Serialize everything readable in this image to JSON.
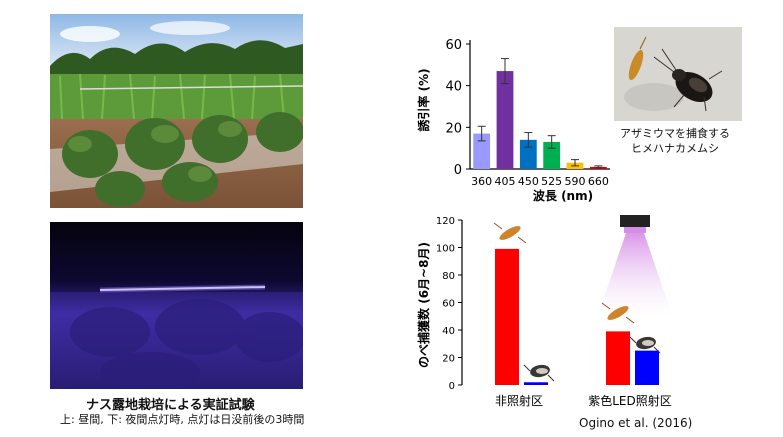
{
  "photos": {
    "day": {
      "label": ""
    },
    "night": {
      "label": ""
    },
    "insect": {
      "caption_line1": "アザミウマを捕食する",
      "caption_line2": "ヒメハナカメムシ"
    }
  },
  "captions": {
    "title": "ナス露地栽培による実証試験",
    "subtitle": "上: 昼間, 下: 夜間点灯時, 点灯は日没前後の3時間"
  },
  "citation": "Ogino et al. (2016)",
  "chart_data": [
    {
      "type": "bar",
      "ylabel": "誘引率 (%)",
      "xlabel": "波長 (nm)",
      "categories": [
        "360",
        "405",
        "450",
        "525",
        "590",
        "660"
      ],
      "values": [
        17,
        47,
        14,
        13,
        3,
        1
      ],
      "errors": [
        3.5,
        6,
        3.5,
        3,
        1.5,
        0.5
      ],
      "colors": [
        "#9999ff",
        "#7030a0",
        "#0070c0",
        "#00b050",
        "#ffc000",
        "#e00000"
      ],
      "ylim": [
        0,
        60
      ],
      "yticks": [
        0,
        20,
        40,
        60
      ]
    },
    {
      "type": "bar",
      "ylabel": "のべ捕獲数 (6月~8月)",
      "categories": [
        "非照射区",
        "紫色LED照射区"
      ],
      "series": [
        {
          "values": [
            99,
            39
          ],
          "color": "#ff0000"
        },
        {
          "values": [
            2,
            25
          ],
          "color": "#0000ff"
        }
      ],
      "ylim": [
        0,
        120
      ],
      "yticks": [
        0,
        20,
        40,
        60,
        80,
        100,
        120
      ]
    }
  ]
}
